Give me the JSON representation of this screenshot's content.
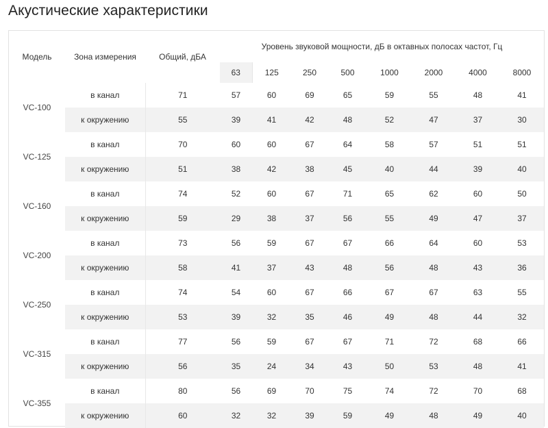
{
  "title": "Акустические характеристики",
  "table": {
    "headers": {
      "model": "Модель",
      "zone": "Зона измерения",
      "total": "Общий, дБА",
      "freq_group": "Уровень звуковой мощности, дБ в октавных полосах частот, Гц",
      "freqs": [
        "63",
        "125",
        "250",
        "500",
        "1000",
        "2000",
        "4000",
        "8000"
      ]
    },
    "models": [
      {
        "name": "VC-100",
        "rows": [
          {
            "zone": "в канал",
            "total": "71",
            "values": [
              "57",
              "60",
              "69",
              "65",
              "59",
              "55",
              "48",
              "41"
            ]
          },
          {
            "zone": "к окружению",
            "total": "55",
            "values": [
              "39",
              "41",
              "42",
              "48",
              "52",
              "47",
              "37",
              "30"
            ]
          }
        ]
      },
      {
        "name": "VC-125",
        "rows": [
          {
            "zone": "в канал",
            "total": "70",
            "values": [
              "60",
              "60",
              "67",
              "64",
              "58",
              "57",
              "51",
              "51"
            ]
          },
          {
            "zone": "к окружению",
            "total": "51",
            "values": [
              "38",
              "42",
              "38",
              "45",
              "40",
              "44",
              "39",
              "40"
            ]
          }
        ]
      },
      {
        "name": "VC-160",
        "rows": [
          {
            "zone": "в канал",
            "total": "74",
            "values": [
              "52",
              "60",
              "67",
              "71",
              "65",
              "62",
              "60",
              "50"
            ]
          },
          {
            "zone": "к окружению",
            "total": "59",
            "values": [
              "29",
              "38",
              "37",
              "56",
              "55",
              "49",
              "47",
              "37"
            ]
          }
        ]
      },
      {
        "name": "VC-200",
        "rows": [
          {
            "zone": "в канал",
            "total": "73",
            "values": [
              "56",
              "59",
              "67",
              "67",
              "66",
              "64",
              "60",
              "53"
            ]
          },
          {
            "zone": "к окружению",
            "total": "58",
            "values": [
              "41",
              "37",
              "43",
              "48",
              "56",
              "48",
              "43",
              "36"
            ]
          }
        ]
      },
      {
        "name": "VC-250",
        "rows": [
          {
            "zone": "в канал",
            "total": "74",
            "values": [
              "54",
              "60",
              "67",
              "66",
              "67",
              "67",
              "63",
              "55"
            ]
          },
          {
            "zone": "к окружению",
            "total": "53",
            "values": [
              "39",
              "32",
              "35",
              "46",
              "49",
              "48",
              "44",
              "32"
            ]
          }
        ]
      },
      {
        "name": "VC-315",
        "rows": [
          {
            "zone": "в канал",
            "total": "77",
            "values": [
              "56",
              "59",
              "67",
              "67",
              "71",
              "72",
              "68",
              "66"
            ]
          },
          {
            "zone": "к окружению",
            "total": "56",
            "values": [
              "35",
              "24",
              "34",
              "43",
              "50",
              "53",
              "48",
              "41"
            ]
          }
        ]
      },
      {
        "name": "VC-355",
        "rows": [
          {
            "zone": "в канал",
            "total": "80",
            "values": [
              "56",
              "69",
              "70",
              "75",
              "74",
              "72",
              "70",
              "68"
            ]
          },
          {
            "zone": "к окружению",
            "total": "60",
            "values": [
              "32",
              "32",
              "39",
              "59",
              "49",
              "48",
              "49",
              "40"
            ]
          }
        ]
      }
    ]
  }
}
